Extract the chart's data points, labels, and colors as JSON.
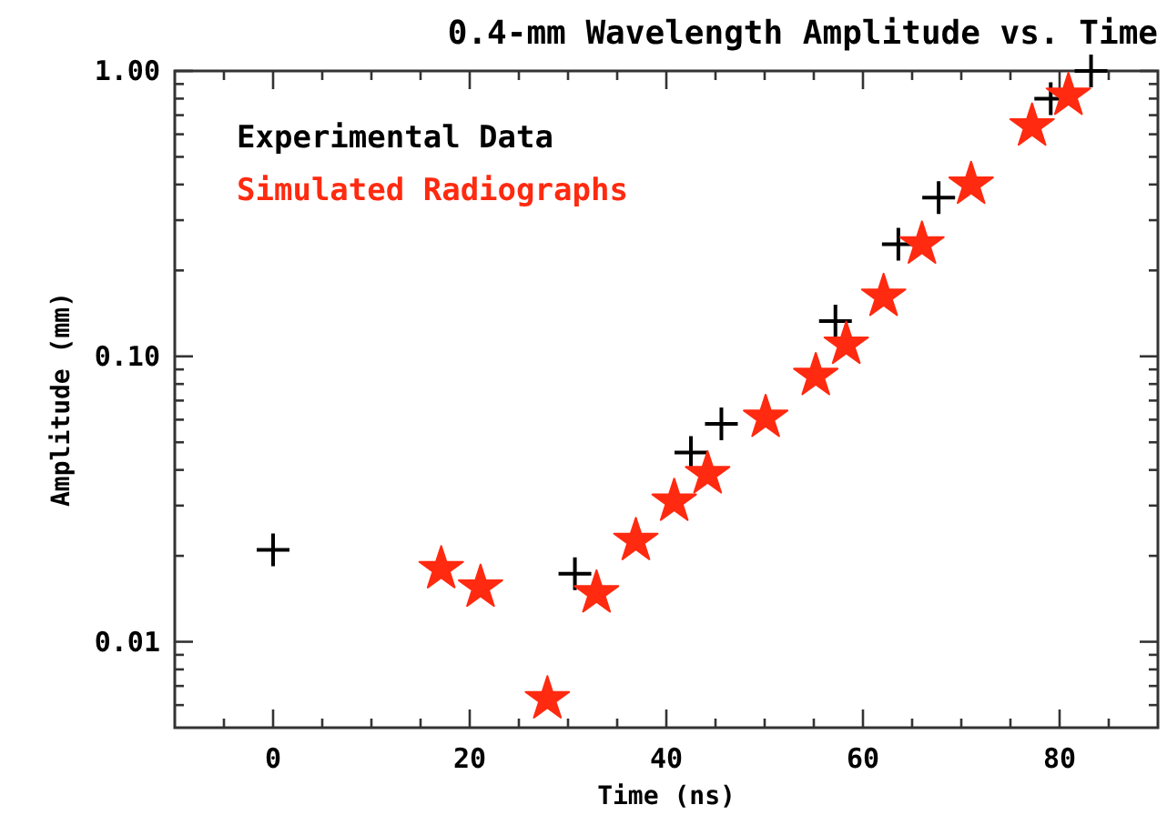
{
  "chart_data": {
    "type": "scatter",
    "title": "0.4-mm Wavelength Amplitude vs. Time",
    "xlabel": "Time (ns)",
    "ylabel": "Amplitude (mm)",
    "log": "y",
    "legend": "top left",
    "grid": false,
    "xlim": [
      -10,
      90
    ],
    "xticks": [
      {
        "value": -5,
        "label": null
      },
      0,
      {
        "value": 5,
        "label": null
      },
      {
        "value": 10,
        "label": null
      },
      {
        "value": 15,
        "label": null
      },
      20,
      {
        "value": 25,
        "label": null
      },
      {
        "value": 30,
        "label": null
      },
      {
        "value": 35,
        "label": null
      },
      40,
      {
        "value": 45,
        "label": null
      },
      {
        "value": 50,
        "label": null
      },
      {
        "value": 55,
        "label": null
      },
      60,
      {
        "value": 65,
        "label": null
      },
      {
        "value": 70,
        "label": null
      },
      {
        "value": 75,
        "label": null
      },
      80,
      {
        "value": 85,
        "label": null
      }
    ],
    "ylim": [
      0.005,
      1.0
    ],
    "yticks": [
      {
        "value": 0.006,
        "label": null
      },
      {
        "value": 0.007,
        "label": null
      },
      {
        "value": 0.008,
        "label": null
      },
      {
        "value": 0.009,
        "label": null
      },
      {
        "value": 0.01,
        "label": "0.01"
      },
      {
        "value": 0.02,
        "label": null
      },
      {
        "value": 0.03,
        "label": null
      },
      {
        "value": 0.04,
        "label": null
      },
      {
        "value": 0.05,
        "label": null
      },
      {
        "value": 0.06,
        "label": null
      },
      {
        "value": 0.07,
        "label": null
      },
      {
        "value": 0.08,
        "label": null
      },
      {
        "value": 0.09,
        "label": null
      },
      {
        "value": 0.1,
        "label": "0.10"
      },
      {
        "value": 0.2,
        "label": null
      },
      {
        "value": 0.3,
        "label": null
      },
      {
        "value": 0.4,
        "label": null
      },
      {
        "value": 0.5,
        "label": null
      },
      {
        "value": 0.6,
        "label": null
      },
      {
        "value": 0.7,
        "label": null
      },
      {
        "value": 0.8,
        "label": null
      },
      {
        "value": 0.9,
        "label": null
      },
      {
        "value": 1.0,
        "label": "1.00"
      }
    ],
    "series": [
      {
        "name": "Experimental Data",
        "color": "#000000",
        "marker": "cross",
        "x": [
          0,
          30.7,
          42.5,
          45.6,
          57.2,
          63.6,
          67.7,
          79.1,
          83.2
        ],
        "values": [
          0.021,
          0.0173,
          0.046,
          0.058,
          0.133,
          0.247,
          0.36,
          0.8,
          1.0
        ]
      },
      {
        "name": "Simulated Radiographs",
        "color": "#ff2a10",
        "marker": "star",
        "x": [
          17.1,
          21.1,
          27.9,
          32.9,
          36.9,
          40.8,
          44.2,
          50.1,
          55.2,
          58.3,
          62.1,
          66.0,
          71.0,
          77.2,
          80.9
        ],
        "values": [
          0.018,
          0.0155,
          0.0063,
          0.0148,
          0.0226,
          0.031,
          0.0387,
          0.061,
          0.0855,
          0.11,
          0.162,
          0.247,
          0.4,
          0.64,
          0.82
        ]
      }
    ]
  }
}
